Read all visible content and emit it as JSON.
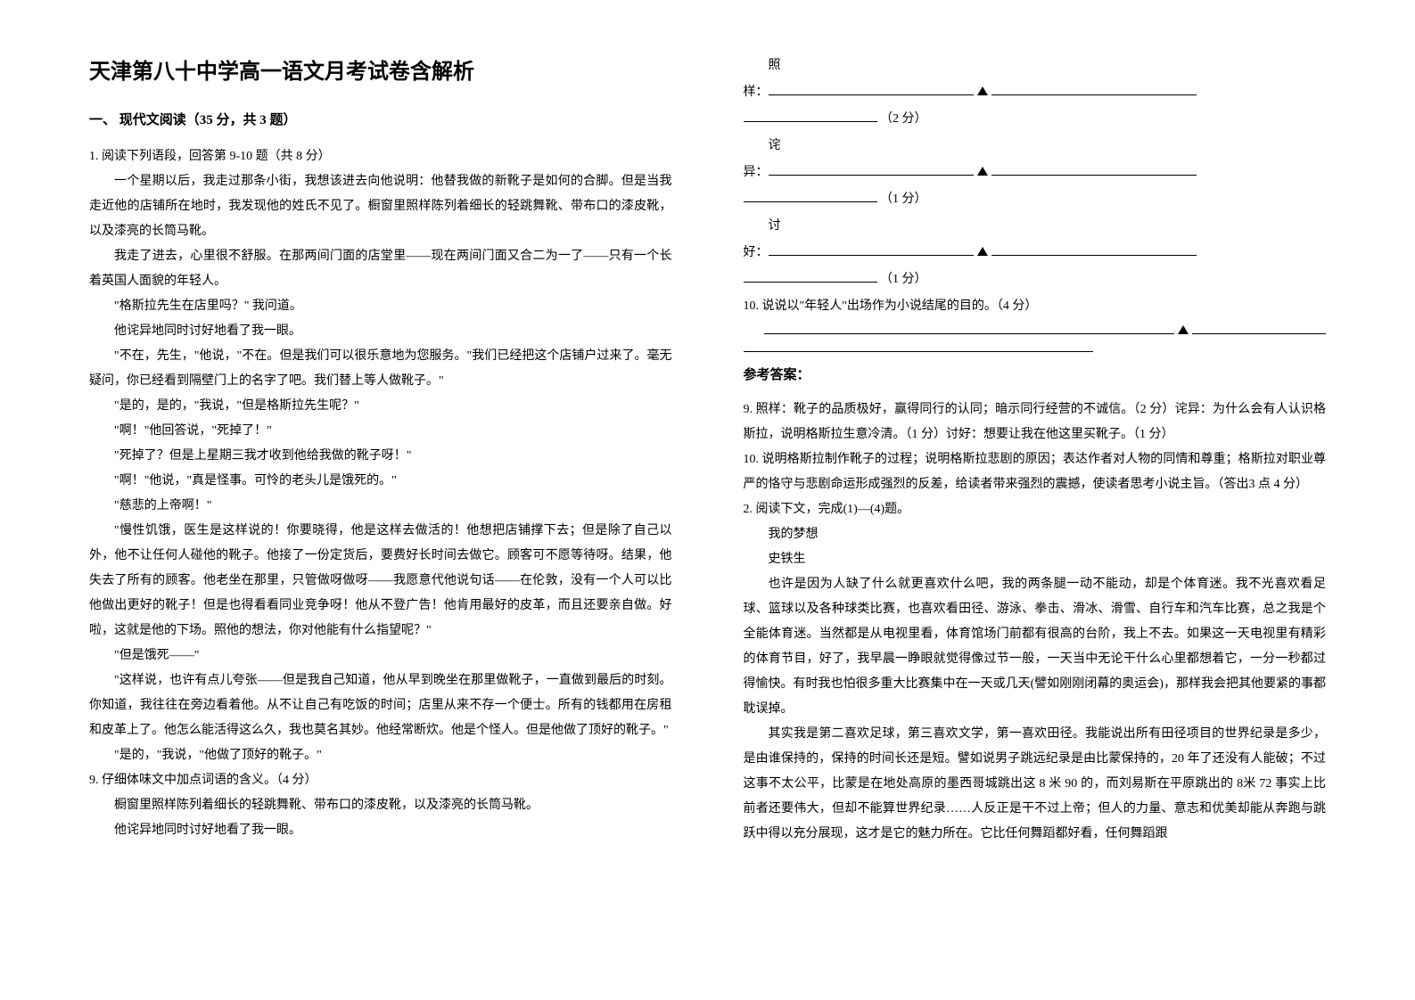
{
  "doc": {
    "title": "天津第八十中学高一语文月考试卷含解析",
    "section1_heading": "一、 现代文阅读（35 分，共 3 题）",
    "q1_intro": "1. 阅读下列语段，回答第 9-10 题（共 8 分）",
    "p1": "一个星期以后，我走过那条小街，我想该进去向他说明：他替我做的新靴子是如何的合脚。但是当我走近他的店铺所在地时，我发现他的姓氏不见了。橱窗里照样陈列着细长的轻跳舞靴、带布口的漆皮靴，以及漆亮的长筒马靴。",
    "p2": "我走了进去，心里很不舒服。在那两间门面的店堂里——现在两间门面又合二为一了——只有一个长着英国人面貌的年轻人。",
    "p3": "\"格斯拉先生在店里吗？\" 我问道。",
    "p4": "他诧异地同时讨好地看了我一眼。",
    "p5": "\"不在，先生，\"他说，\"不在。但是我们可以很乐意地为您服务。\"我们已经把这个店铺户过来了。毫无疑问，你已经看到隔壁门上的名字了吧。我们替上等人做靴子。\"",
    "p6": "\"是的，是的，\"我说，\"但是格斯拉先生呢？\"",
    "p7": "\"啊！\"他回答说，\"死掉了！\"",
    "p8": "\"死掉了？但是上星期三我才收到他给我做的靴子呀！\"",
    "p9": "\"啊！\"他说，\"真是怪事。可怜的老头儿是饿死的。\"",
    "p10": "\"慈悲的上帝啊！\"",
    "p11": "\"慢性饥饿，医生是这样说的！你要晓得，他是这样去做活的！他想把店铺撑下去；但是除了自己以外，他不让任何人碰他的靴子。他接了一份定货后，要费好长时间去做它。顾客可不愿等待呀。结果，他失去了所有的顾客。他老坐在那里，只管做呀做呀——我愿意代他说句话——在伦敦，没有一个人可以比他做出更好的靴子！但是也得看看同业竞争呀！他从不登广告！他肯用最好的皮革，而且还要亲自做。好啦，这就是他的下场。照他的想法，你对他能有什么指望呢？\"",
    "p12": "\"但是饿死——\"",
    "p13": "\"这样说，也许有点儿夸张——但是我自己知道，他从早到晚坐在那里做靴子，一直做到最后的时刻。你知道，我往往在旁边看着他。从不让自己有吃饭的时间；店里从来不存一个便士。所有的钱都用在房租和皮革上了。他怎么能活得这么久，我也莫名其妙。他经常断炊。他是个怪人。但是他做了顶好的靴子。\"",
    "p14": "\"是的，\"我说，\"他做了顶好的靴子。\"",
    "q9_intro": "9. 仔细体味文中加点词语的含义。（4 分）",
    "q9_line1": "橱窗里照样陈列着细长的轻跳舞靴、带布口的漆皮靴，以及漆亮的长筒马靴。",
    "q9_line2": "他诧异地同时讨好地看了我一眼。",
    "col2_label1": "照",
    "col2_label1b": "样：",
    "col2_score1": "（2 分）",
    "col2_label2": "诧",
    "col2_label2b": "异：",
    "col2_score2": "（1 分）",
    "col2_label3": "讨",
    "col2_label3b": "好：",
    "col2_score3": "（1 分）",
    "q10_intro": "10. 说说以\"年轻人\"出场作为小说结尾的目的。（4 分）",
    "answer_heading": "参考答案：",
    "ans9": "9. 照样：靴子的品质极好，赢得同行的认同；暗示同行经营的不诚信。（2 分）诧异：为什么会有人认识格斯拉，说明格斯拉生意冷清。（1 分）讨好：想要让我在他这里买靴子。（1 分）",
    "ans10": "10. 说明格斯拉制作靴子的过程；说明格斯拉悲剧的原因；表达作者对人物的同情和尊重；格斯拉对职业尊严的恪守与悲剧命运形成强烈的反差，给读者带来强烈的震撼，使读者思考小说主旨。（答出3 点 4 分）",
    "q2_intro": "2. 阅读下文，完成(1)—(4)题。",
    "essay_title": "我的梦想",
    "essay_author": "史铁生",
    "essay_p1": "也许是因为人缺了什么就更喜欢什么吧，我的两条腿一动不能动，却是个体育迷。我不光喜欢看足球、篮球以及各种球类比赛，也喜欢看田径、游泳、拳击、滑冰、滑雪、自行车和汽车比赛，总之我是个全能体育迷。当然都是从电视里看，体育馆场门前都有很高的台阶，我上不去。如果这一天电视里有精彩的体育节目，好了，我早晨一睁眼就觉得像过节一般，一天当中无论干什么心里都想着它，一分一秒都过得愉快。有时我也怕很多重大比赛集中在一天或几天(譬如刚刚闭幕的奥运会)，那样我会把其他要紧的事都耽误掉。",
    "essay_p2": "其实我是第二喜欢足球，第三喜欢文学，第一喜欢田径。我能说出所有田径项目的世界纪录是多少，是由谁保持的，保持的时间长还是短。譬如说男子跳远纪录是由比蒙保持的，20 年了还没有人能破；不过这事不太公平，比蒙是在地处高原的墨西哥城跳出这 8 米 90 的，而刘易斯在平原跳出的 8米 72 事实上比前者还要伟大，但却不能算世界纪录……人反正是干不过上帝；但人的力量、意志和优美却能从奔跑与跳跃中得以充分展现，这才是它的魅力所在。它比任何舞蹈都好看，任何舞蹈跟"
  },
  "style": {
    "title_fontsize": 24,
    "body_fontsize": 14,
    "heading_fontsize": 15,
    "line_height": 2,
    "bg_color": "#ffffff",
    "text_color": "#000000",
    "font_family_title": "SimHei",
    "font_family_body": "SimSun"
  }
}
